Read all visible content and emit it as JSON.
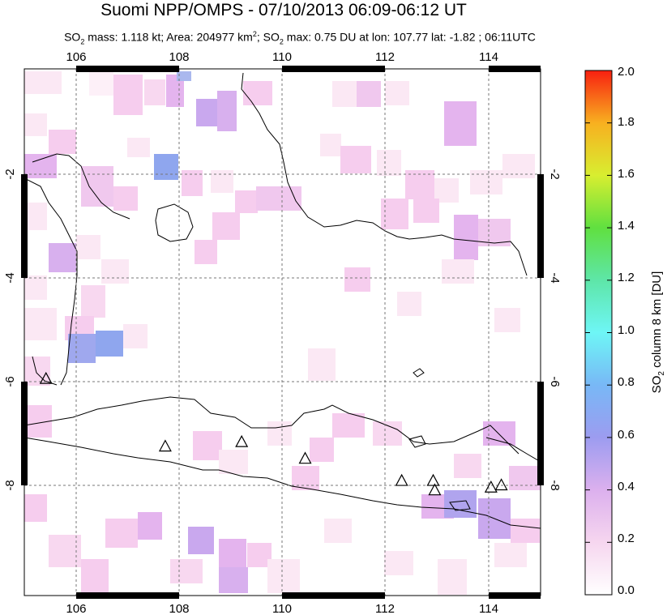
{
  "title": "Suomi NPP/OMPS - 07/10/2013 06:09-06:12 UT",
  "subtitle": {
    "so2_mass_label": "SO",
    "so2_mass_text": " mass: 1.118 kt; Area: 204977 km",
    "area_sup": "2",
    "so2_max_label": "; SO",
    "so2_max_text": " max: 0.75 DU at lon: 107.77 lat: -1.82 ; 06:11UTC",
    "sub2": "2"
  },
  "map": {
    "lon_ticks": [
      "106",
      "108",
      "110",
      "112",
      "114"
    ],
    "lat_ticks": [
      "-2",
      "-4",
      "-6",
      "-8"
    ],
    "lon_range": [
      105,
      115
    ],
    "lat_range": [
      -10,
      -0.5
    ],
    "volcano_markers": [
      {
        "lon": 105.42,
        "lat": -6.1
      },
      {
        "lon": 107.73,
        "lat": -7.32
      },
      {
        "lon": 109.21,
        "lat": -7.24
      },
      {
        "lon": 110.44,
        "lat": -7.54
      },
      {
        "lon": 112.31,
        "lat": -7.94
      },
      {
        "lon": 112.92,
        "lat": -7.94
      },
      {
        "lon": 112.95,
        "lat": -8.11
      },
      {
        "lon": 114.04,
        "lat": -8.06
      },
      {
        "lon": 114.24,
        "lat": -8.02
      }
    ]
  },
  "colorbar": {
    "ticks": [
      "0.0",
      "0.2",
      "0.4",
      "0.6",
      "0.8",
      "1.0",
      "1.2",
      "1.4",
      "1.6",
      "1.8",
      "2.0"
    ],
    "label_main": "SO",
    "label_sub": "2",
    "label_rest": " column 8 km [DU]",
    "range": [
      0,
      2
    ]
  },
  "colors": {
    "pixel_light": "#fbe8f4",
    "pixel_pink": "#f6cdee",
    "pixel_violet": "#e4b4ee",
    "pixel_purple": "#c9a8ee",
    "pixel_blue": "#8fa6ee"
  }
}
